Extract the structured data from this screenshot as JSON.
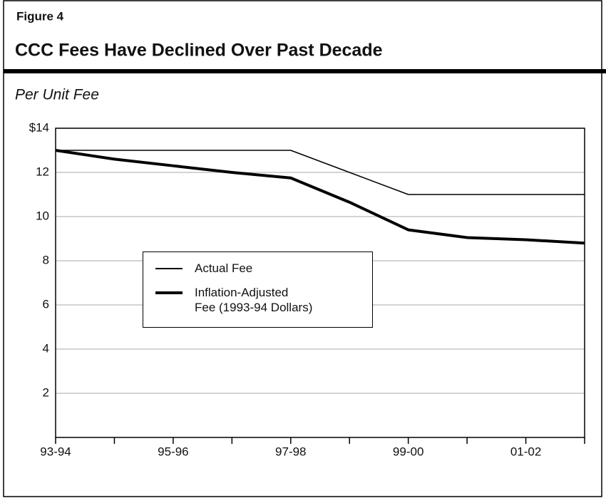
{
  "chart_data": {
    "type": "line",
    "figure_label": "Figure 4",
    "title": "CCC Fees Have Declined Over Past Decade",
    "subtitle": "Per Unit Fee",
    "categories": [
      "93-94",
      null,
      "95-96",
      null,
      "97-98",
      null,
      "99-00",
      null,
      "01-02",
      null
    ],
    "series": [
      {
        "name": "Actual Fee",
        "color": "#000000",
        "width": 1.5,
        "values": [
          13,
          13,
          13,
          13,
          13,
          12,
          11,
          11,
          11,
          11
        ]
      },
      {
        "name": "Inflation-Adjusted\nFee (1993-94 Dollars)",
        "color": "#000000",
        "width": 4,
        "values": [
          13,
          12.6,
          12.3,
          12.0,
          11.75,
          10.65,
          9.4,
          9.05,
          8.95,
          8.8
        ]
      }
    ],
    "ylim": [
      0,
      14
    ],
    "yticks": [
      2,
      4,
      6,
      8,
      10,
      12,
      {
        "value": 14,
        "label": "$14"
      }
    ],
    "grid": true
  }
}
